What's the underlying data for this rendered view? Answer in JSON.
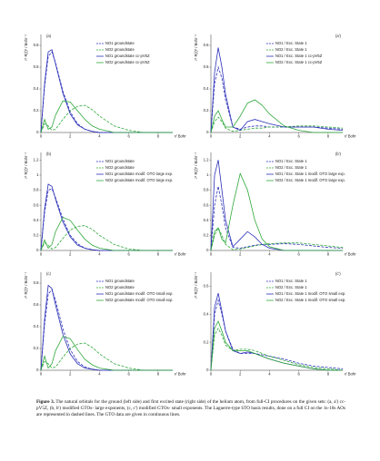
{
  "chart_data": [
    {
      "type": "line",
      "panel": "(a)",
      "ylabel": "r² R(r)² / Bohr⁻¹",
      "xlabel": "r/ Bohr",
      "x": [
        0,
        0.25,
        0.5,
        0.75,
        1,
        1.5,
        2,
        2.5,
        3,
        3.5,
        4,
        5,
        6,
        7,
        8,
        9
      ],
      "xlim": [
        0,
        9
      ],
      "xticks": [
        0,
        2,
        4,
        6,
        8
      ],
      "ylim": [
        0,
        0.9
      ],
      "yticks": [
        0,
        0.2,
        0.4,
        0.6,
        0.8
      ],
      "series": [
        {
          "name": "NO1 groundstate",
          "color": "#2a2fb8",
          "dash": true,
          "values": [
            0,
            0.42,
            0.7,
            0.74,
            0.64,
            0.38,
            0.19,
            0.08,
            0.03,
            0.01,
            0,
            0,
            0,
            0,
            0,
            0
          ]
        },
        {
          "name": "NO2 groundstate",
          "color": "#2ea83a",
          "dash": true,
          "values": [
            0,
            0.08,
            0.06,
            0.02,
            0.03,
            0.12,
            0.2,
            0.24,
            0.25,
            0.21,
            0.15,
            0.06,
            0.02,
            0,
            0,
            0
          ]
        },
        {
          "name": "NO1 groundstate cc-pV5Z",
          "color": "#2a2fb8",
          "dash": false,
          "values": [
            0,
            0.45,
            0.74,
            0.76,
            0.63,
            0.36,
            0.17,
            0.07,
            0.03,
            0.01,
            0,
            0,
            0,
            0,
            0,
            0
          ]
        },
        {
          "name": "NO2 groundstate cc-pV5Z",
          "color": "#2ea83a",
          "dash": false,
          "values": [
            0,
            0.12,
            0.03,
            0.05,
            0.16,
            0.29,
            0.28,
            0.2,
            0.12,
            0.06,
            0.03,
            0,
            0,
            0,
            0,
            0
          ]
        }
      ]
    },
    {
      "type": "line",
      "panel": "(a')",
      "ylabel": "r² R(r)² / Bohr⁻¹",
      "xlabel": "r/ Bohr",
      "x": [
        0,
        0.25,
        0.5,
        0.75,
        1,
        1.5,
        2,
        2.5,
        3,
        3.5,
        4,
        5,
        6,
        7,
        8,
        9
      ],
      "xlim": [
        0,
        9
      ],
      "xticks": [
        0,
        2,
        4,
        6,
        8
      ],
      "ylim": [
        0,
        0.9
      ],
      "yticks": [
        0,
        0.2,
        0.4,
        0.6,
        0.8
      ],
      "series": [
        {
          "name": "NO1 / Exc. State 1",
          "color": "#2a2fb8",
          "dash": true,
          "values": [
            0,
            0.45,
            0.6,
            0.5,
            0.3,
            0.05,
            0.03,
            0.05,
            0.06,
            0.06,
            0.05,
            0.05,
            0.05,
            0.05,
            0.04,
            0.03
          ]
        },
        {
          "name": "NO2 / Exc. State 1",
          "color": "#2ea83a",
          "dash": true,
          "values": [
            0,
            0.1,
            0.14,
            0.1,
            0.04,
            0.01,
            0.02,
            0.03,
            0.04,
            0.04,
            0.05,
            0.05,
            0.06,
            0.06,
            0.05,
            0.04
          ]
        },
        {
          "name": "NO1 / Exc. State 1 cc-pV5Z",
          "color": "#2a2fb8",
          "dash": false,
          "values": [
            0,
            0.55,
            0.78,
            0.6,
            0.35,
            0.05,
            0.02,
            0.1,
            0.12,
            0.1,
            0.08,
            0.05,
            0.05,
            0.05,
            0.03,
            0.02
          ]
        },
        {
          "name": "NO2 / Exc. State 1 cc-pV5Z",
          "color": "#2ea83a",
          "dash": false,
          "values": [
            0,
            0.15,
            0.2,
            0.12,
            0.05,
            0.05,
            0.15,
            0.27,
            0.3,
            0.25,
            0.17,
            0.06,
            0.02,
            0,
            0,
            0
          ]
        }
      ]
    },
    {
      "type": "line",
      "panel": "(b)",
      "ylabel": "r² R(r)² / Bohr⁻¹",
      "xlabel": "r/ Bohr",
      "x": [
        0,
        0.25,
        0.5,
        0.75,
        1,
        1.5,
        2,
        2.5,
        3,
        3.5,
        4,
        5,
        6,
        7,
        8,
        9
      ],
      "xlim": [
        0,
        9
      ],
      "xticks": [
        0,
        2,
        4,
        6,
        8
      ],
      "ylim": [
        0,
        1.3
      ],
      "yticks": [
        0,
        0.2,
        0.4,
        0.6,
        0.8,
        1,
        1.2
      ],
      "series": [
        {
          "name": "NO1 groundstate",
          "color": "#2a2fb8",
          "dash": true,
          "values": [
            0,
            0.5,
            0.8,
            0.82,
            0.7,
            0.42,
            0.2,
            0.09,
            0.03,
            0.01,
            0,
            0,
            0,
            0,
            0,
            0
          ]
        },
        {
          "name": "NO2 groundstate",
          "color": "#2ea83a",
          "dash": true,
          "values": [
            0,
            0.1,
            0.07,
            0.02,
            0.04,
            0.16,
            0.27,
            0.32,
            0.33,
            0.28,
            0.2,
            0.08,
            0.02,
            0,
            0,
            0
          ]
        },
        {
          "name": "NO1 groundstate modif. OTO large exp.",
          "color": "#2a2fb8",
          "dash": false,
          "values": [
            0,
            0.55,
            0.88,
            0.85,
            0.68,
            0.38,
            0.18,
            0.07,
            0.03,
            0.01,
            0,
            0,
            0,
            0,
            0,
            0
          ]
        },
        {
          "name": "NO2 groundstate modif. OTO large exp.",
          "color": "#2ea83a",
          "dash": false,
          "values": [
            0,
            0.14,
            0.03,
            0.08,
            0.25,
            0.44,
            0.4,
            0.27,
            0.15,
            0.07,
            0.03,
            0,
            0,
            0,
            0,
            0
          ]
        }
      ]
    },
    {
      "type": "line",
      "panel": "(b')",
      "ylabel": "r² R(r)² / Bohr⁻¹",
      "xlabel": "r/ Bohr",
      "x": [
        0,
        0.25,
        0.5,
        0.75,
        1,
        1.5,
        2,
        2.5,
        3,
        3.5,
        4,
        5,
        6,
        7,
        8,
        9
      ],
      "xlim": [
        0,
        9
      ],
      "xticks": [
        0,
        2,
        4,
        6,
        8
      ],
      "ylim": [
        0,
        1.3
      ],
      "yticks": [
        0,
        0.2,
        0.4,
        0.6,
        0.8,
        1,
        1.2
      ],
      "series": [
        {
          "name": "NO1 / Exc. State 1",
          "color": "#2a2fb8",
          "dash": true,
          "values": [
            0,
            0.6,
            0.85,
            0.6,
            0.3,
            0.04,
            0.03,
            0.05,
            0.07,
            0.08,
            0.08,
            0.09,
            0.08,
            0.06,
            0.04,
            0.03
          ]
        },
        {
          "name": "NO2 / Exc. State 1",
          "color": "#2ea83a",
          "dash": true,
          "values": [
            0,
            0.2,
            0.3,
            0.2,
            0.08,
            0.01,
            0.02,
            0.04,
            0.06,
            0.08,
            0.09,
            0.1,
            0.1,
            0.08,
            0.06,
            0.04
          ]
        },
        {
          "name": "NO1 / Exc. State 1 modif. OTO large exp.",
          "color": "#2a2fb8",
          "dash": false,
          "values": [
            0,
            1.0,
            1.2,
            0.8,
            0.4,
            0.05,
            0.15,
            0.25,
            0.18,
            0.08,
            0.03,
            0,
            0,
            0,
            0,
            0
          ]
        },
        {
          "name": "NO2 / Exc. State 1 modif. OTO large exp.",
          "color": "#2ea83a",
          "dash": false,
          "values": [
            0,
            0.25,
            0.3,
            0.15,
            0.1,
            0.6,
            1.02,
            0.8,
            0.4,
            0.15,
            0.05,
            0,
            0,
            0,
            0,
            0
          ]
        }
      ]
    },
    {
      "type": "line",
      "panel": "(c)",
      "ylabel": "r² R(r)² / Bohr⁻¹",
      "xlabel": "r/ Bohr",
      "x": [
        0,
        0.25,
        0.5,
        0.75,
        1,
        1.5,
        2,
        2.5,
        3,
        3.5,
        4,
        5,
        6,
        7,
        8,
        9
      ],
      "xlim": [
        0,
        9
      ],
      "xticks": [
        0,
        2,
        4,
        6,
        8
      ],
      "ylim": [
        0,
        0.9
      ],
      "yticks": [
        0,
        0.2,
        0.4,
        0.6,
        0.8
      ],
      "series": [
        {
          "name": "NO1 groundstate",
          "color": "#2a2fb8",
          "dash": true,
          "values": [
            0,
            0.42,
            0.7,
            0.74,
            0.64,
            0.38,
            0.19,
            0.08,
            0.03,
            0.01,
            0,
            0,
            0,
            0,
            0,
            0
          ]
        },
        {
          "name": "NO2 groundstate",
          "color": "#2ea83a",
          "dash": true,
          "values": [
            0,
            0.08,
            0.06,
            0.02,
            0.03,
            0.12,
            0.2,
            0.24,
            0.25,
            0.21,
            0.15,
            0.06,
            0.02,
            0,
            0,
            0
          ]
        },
        {
          "name": "NO1 groundstate modif. OTO small exp.",
          "color": "#2a2fb8",
          "dash": false,
          "values": [
            0,
            0.47,
            0.78,
            0.75,
            0.6,
            0.33,
            0.15,
            0.06,
            0.02,
            0.01,
            0,
            0,
            0,
            0,
            0,
            0
          ]
        },
        {
          "name": "NO2 groundstate modif. OTO small exp.",
          "color": "#2ea83a",
          "dash": false,
          "values": [
            0,
            0.13,
            0.02,
            0.06,
            0.18,
            0.31,
            0.29,
            0.19,
            0.1,
            0.05,
            0.02,
            0,
            0,
            0,
            0,
            0
          ]
        }
      ]
    },
    {
      "type": "line",
      "panel": "(c')",
      "ylabel": "r² R(r)² / Bohr⁻¹",
      "xlabel": "r/ Bohr",
      "x": [
        0,
        0.25,
        0.5,
        0.75,
        1,
        1.5,
        2,
        2.5,
        3,
        3.5,
        4,
        5,
        6,
        7,
        8,
        9
      ],
      "xlim": [
        0,
        9
      ],
      "xticks": [
        0,
        2,
        4,
        6,
        8
      ],
      "ylim": [
        0,
        0.7
      ],
      "yticks": [
        0,
        0.2,
        0.4,
        0.6
      ],
      "series": [
        {
          "name": "NO1 / Exc. State 1",
          "color": "#2a2fb8",
          "dash": true,
          "values": [
            0,
            0.4,
            0.5,
            0.4,
            0.28,
            0.15,
            0.12,
            0.12,
            0.12,
            0.11,
            0.1,
            0.08,
            0.05,
            0.03,
            0.02,
            0.01
          ]
        },
        {
          "name": "NO2 / Exc. State 1",
          "color": "#2ea83a",
          "dash": true,
          "values": [
            0,
            0.25,
            0.3,
            0.25,
            0.18,
            0.14,
            0.15,
            0.15,
            0.14,
            0.12,
            0.1,
            0.07,
            0.04,
            0.02,
            0.01,
            0
          ]
        },
        {
          "name": "NO1 / Exc. State 1 modif. OTO small exp.",
          "color": "#2a2fb8",
          "dash": false,
          "values": [
            0,
            0.45,
            0.55,
            0.42,
            0.28,
            0.14,
            0.12,
            0.13,
            0.12,
            0.1,
            0.08,
            0.05,
            0.03,
            0.01,
            0,
            0
          ]
        },
        {
          "name": "NO2 / Exc. State 1 modif. OTO small exp.",
          "color": "#2ea83a",
          "dash": false,
          "values": [
            0,
            0.3,
            0.35,
            0.28,
            0.2,
            0.14,
            0.14,
            0.14,
            0.12,
            0.1,
            0.08,
            0.05,
            0.03,
            0.01,
            0,
            0
          ]
        }
      ]
    }
  ],
  "caption": {
    "label": "Figure 3.",
    "text": "The natural orbitals for the ground (left side) and first excited state (right side) of the helium atom, from full-CI procedures on the given sets: (a, a') cc-pV5Z, (b, b') modified GTOs- large exponents, (c, c') modified GTOs- small exponents. The Laguerre-type STO basis results, done on a full CI on the 1s-10s AOs are represented in dashed lines. The GTO data are given in continuous lines."
  }
}
